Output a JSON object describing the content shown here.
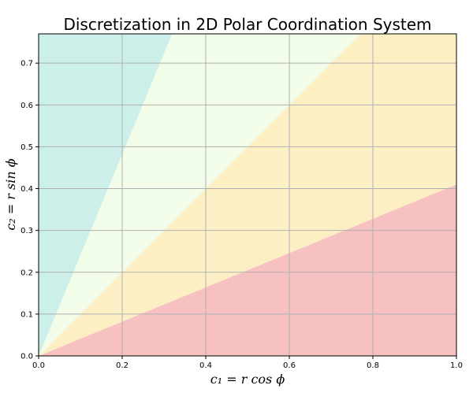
{
  "chart_data": {
    "type": "area",
    "title": "Discretization in 2D Polar Coordination System",
    "xlabel": "c₁ = r cos ϕ",
    "ylabel": "c₂ = r sin ϕ",
    "xlim": [
      0,
      1.0
    ],
    "ylim": [
      0,
      0.77
    ],
    "xticks": [
      0.0,
      0.2,
      0.4,
      0.6,
      0.8,
      1.0
    ],
    "yticks": [
      0.0,
      0.1,
      0.2,
      0.3,
      0.4,
      0.5,
      0.6,
      0.7
    ],
    "xtick_labels": [
      "0.0",
      "0.2",
      "0.4",
      "0.6",
      "0.8",
      "1.0"
    ],
    "ytick_labels": [
      "0.0",
      "0.1",
      "0.2",
      "0.3",
      "0.4",
      "0.5",
      "0.6",
      "0.7"
    ],
    "grid": true,
    "boundary_slopes": [
      0.41,
      1.0,
      2.41
    ],
    "regions": [
      {
        "slope_from": 0,
        "slope_to": 0.41,
        "color": "#f7c1c1"
      },
      {
        "slope_from": 0.41,
        "slope_to": 1.0,
        "color": "#fcefc3"
      },
      {
        "slope_from": 1.0,
        "slope_to": 2.41,
        "color": "#f2fde9"
      },
      {
        "slope_from": 2.41,
        "slope_to": null,
        "color": "#cdefe9"
      }
    ]
  }
}
